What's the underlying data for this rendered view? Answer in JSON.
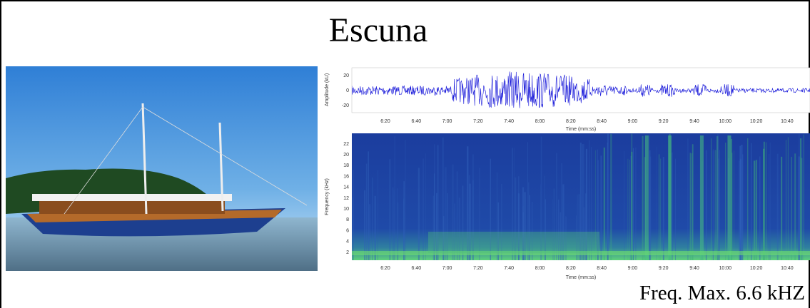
{
  "title": "Escuna",
  "caption": "Freq. Max. 6.6 kHZ",
  "waveform": {
    "ylabel": "Amplitude (kU)",
    "xlabel": "Time (mm:ss)",
    "yticks": [
      20,
      0,
      -20
    ],
    "xticks": [
      "6:20",
      "6:40",
      "7:00",
      "7:20",
      "7:40",
      "8:00",
      "8:20",
      "8:40",
      "9:00",
      "9:20",
      "9:40",
      "10:00",
      "10:20",
      "10:40"
    ]
  },
  "spectrogram": {
    "ylabel": "Frequency (kHz)",
    "xlabel": "Time (mm:ss)",
    "yticks": [
      22,
      20,
      18,
      16,
      14,
      12,
      10,
      8,
      6,
      4,
      2
    ],
    "xticks": [
      "6:20",
      "6:40",
      "7:00",
      "7:20",
      "7:40",
      "8:00",
      "8:20",
      "8:40",
      "9:00",
      "9:20",
      "9:40",
      "10:00",
      "10:20",
      "10:40"
    ]
  }
}
